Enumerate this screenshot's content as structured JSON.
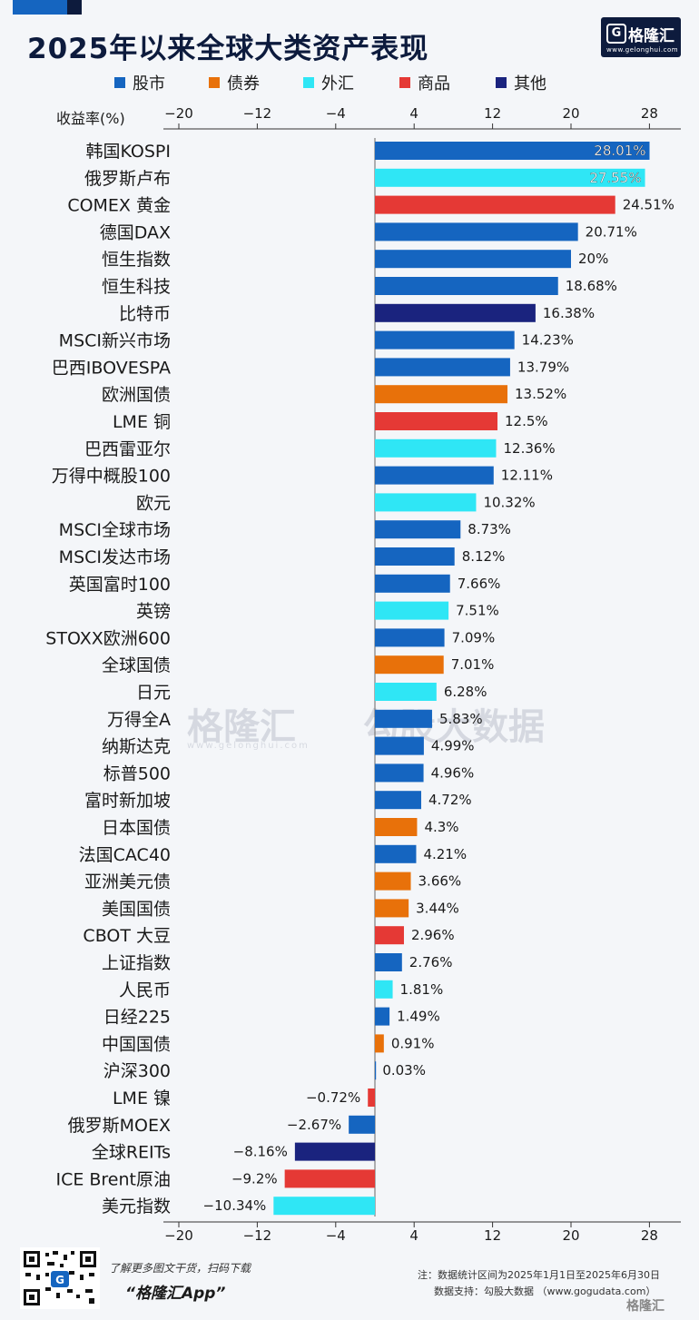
{
  "header": {
    "title": "2025年以来全球大类资产表现",
    "brand_name": "格隆汇",
    "brand_url": "www.gelonghui.com"
  },
  "legend": [
    {
      "label": "股市",
      "color": "#1565c0"
    },
    {
      "label": "债券",
      "color": "#e8710a"
    },
    {
      "label": "外汇",
      "color": "#2fe6f5"
    },
    {
      "label": "商品",
      "color": "#e53935"
    },
    {
      "label": "其他",
      "color": "#1a237e"
    }
  ],
  "watermark": {
    "left": "格隆汇",
    "right": "勾股大数据",
    "url": "www.gelonghui.com"
  },
  "footer": {
    "cta": "了解更多图文干货，扫码下载",
    "app": "“格隆汇App”",
    "note": "注：数据统计区间为2025年1月1日至2025年6月30日",
    "source": "数据支持：勾股大数据 （www.gogudata.com）",
    "logo": "格隆汇"
  },
  "chart_data": {
    "type": "bar",
    "orientation": "horizontal",
    "title": "2025年以来全球大类资产表现",
    "xlabel": "收益率(%)",
    "xlim": [
      -20,
      32
    ],
    "xticks": [
      -20,
      -12,
      -4,
      4,
      12,
      20,
      28
    ],
    "grid": false,
    "legend_position": "top",
    "categories": [
      "韩国KOSPI",
      "俄罗斯卢布",
      "COMEX 黄金",
      "德国DAX",
      "恒生指数",
      "恒生科技",
      "比特币",
      "MSCI新兴市场",
      "巴西IBOVESPA",
      "欧洲国债",
      "LME 铜",
      "巴西雷亚尔",
      "万得中概股100",
      "欧元",
      "MSCI全球市场",
      "MSCI发达市场",
      "英国富时100",
      "英镑",
      "STOXX欧洲600",
      "全球国债",
      "日元",
      "万得全A",
      "纳斯达克",
      "标普500",
      "富时新加坡",
      "日本国债",
      "法国CAC40",
      "亚洲美元债",
      "美国国债",
      "CBOT 大豆",
      "上证指数",
      "人民币",
      "日经225",
      "中国国债",
      "沪深300",
      "LME 镍",
      "俄罗斯MOEX",
      "全球REITs",
      "ICE Brent原油",
      "美元指数"
    ],
    "values": [
      28.01,
      27.55,
      24.51,
      20.71,
      20,
      18.68,
      16.38,
      14.23,
      13.79,
      13.52,
      12.5,
      12.36,
      12.11,
      10.32,
      8.73,
      8.12,
      7.66,
      7.51,
      7.09,
      7.01,
      6.28,
      5.83,
      4.99,
      4.96,
      4.72,
      4.3,
      4.21,
      3.66,
      3.44,
      2.96,
      2.76,
      1.81,
      1.49,
      0.91,
      0.03,
      -0.72,
      -2.67,
      -8.16,
      -9.2,
      -10.34
    ],
    "value_labels": [
      "28.01%",
      "27.55%",
      "24.51%",
      "20.71%",
      "20%",
      "18.68%",
      "16.38%",
      "14.23%",
      "13.79%",
      "13.52%",
      "12.5%",
      "12.36%",
      "12.11%",
      "10.32%",
      "8.73%",
      "8.12%",
      "7.66%",
      "7.51%",
      "7.09%",
      "7.01%",
      "6.28%",
      "5.83%",
      "4.99%",
      "4.96%",
      "4.72%",
      "4.3%",
      "4.21%",
      "3.66%",
      "3.44%",
      "2.96%",
      "2.76%",
      "1.81%",
      "1.49%",
      "0.91%",
      "0.03%",
      "−0.72%",
      "−2.67%",
      "−8.16%",
      "−9.2%",
      "−10.34%"
    ],
    "groups": [
      "股市",
      "外汇",
      "商品",
      "股市",
      "股市",
      "股市",
      "其他",
      "股市",
      "股市",
      "债券",
      "商品",
      "外汇",
      "股市",
      "外汇",
      "股市",
      "股市",
      "股市",
      "外汇",
      "股市",
      "债券",
      "外汇",
      "股市",
      "股市",
      "股市",
      "股市",
      "债券",
      "股市",
      "债券",
      "债券",
      "商品",
      "股市",
      "外汇",
      "股市",
      "债券",
      "股市",
      "商品",
      "股市",
      "其他",
      "商品",
      "外汇"
    ]
  }
}
